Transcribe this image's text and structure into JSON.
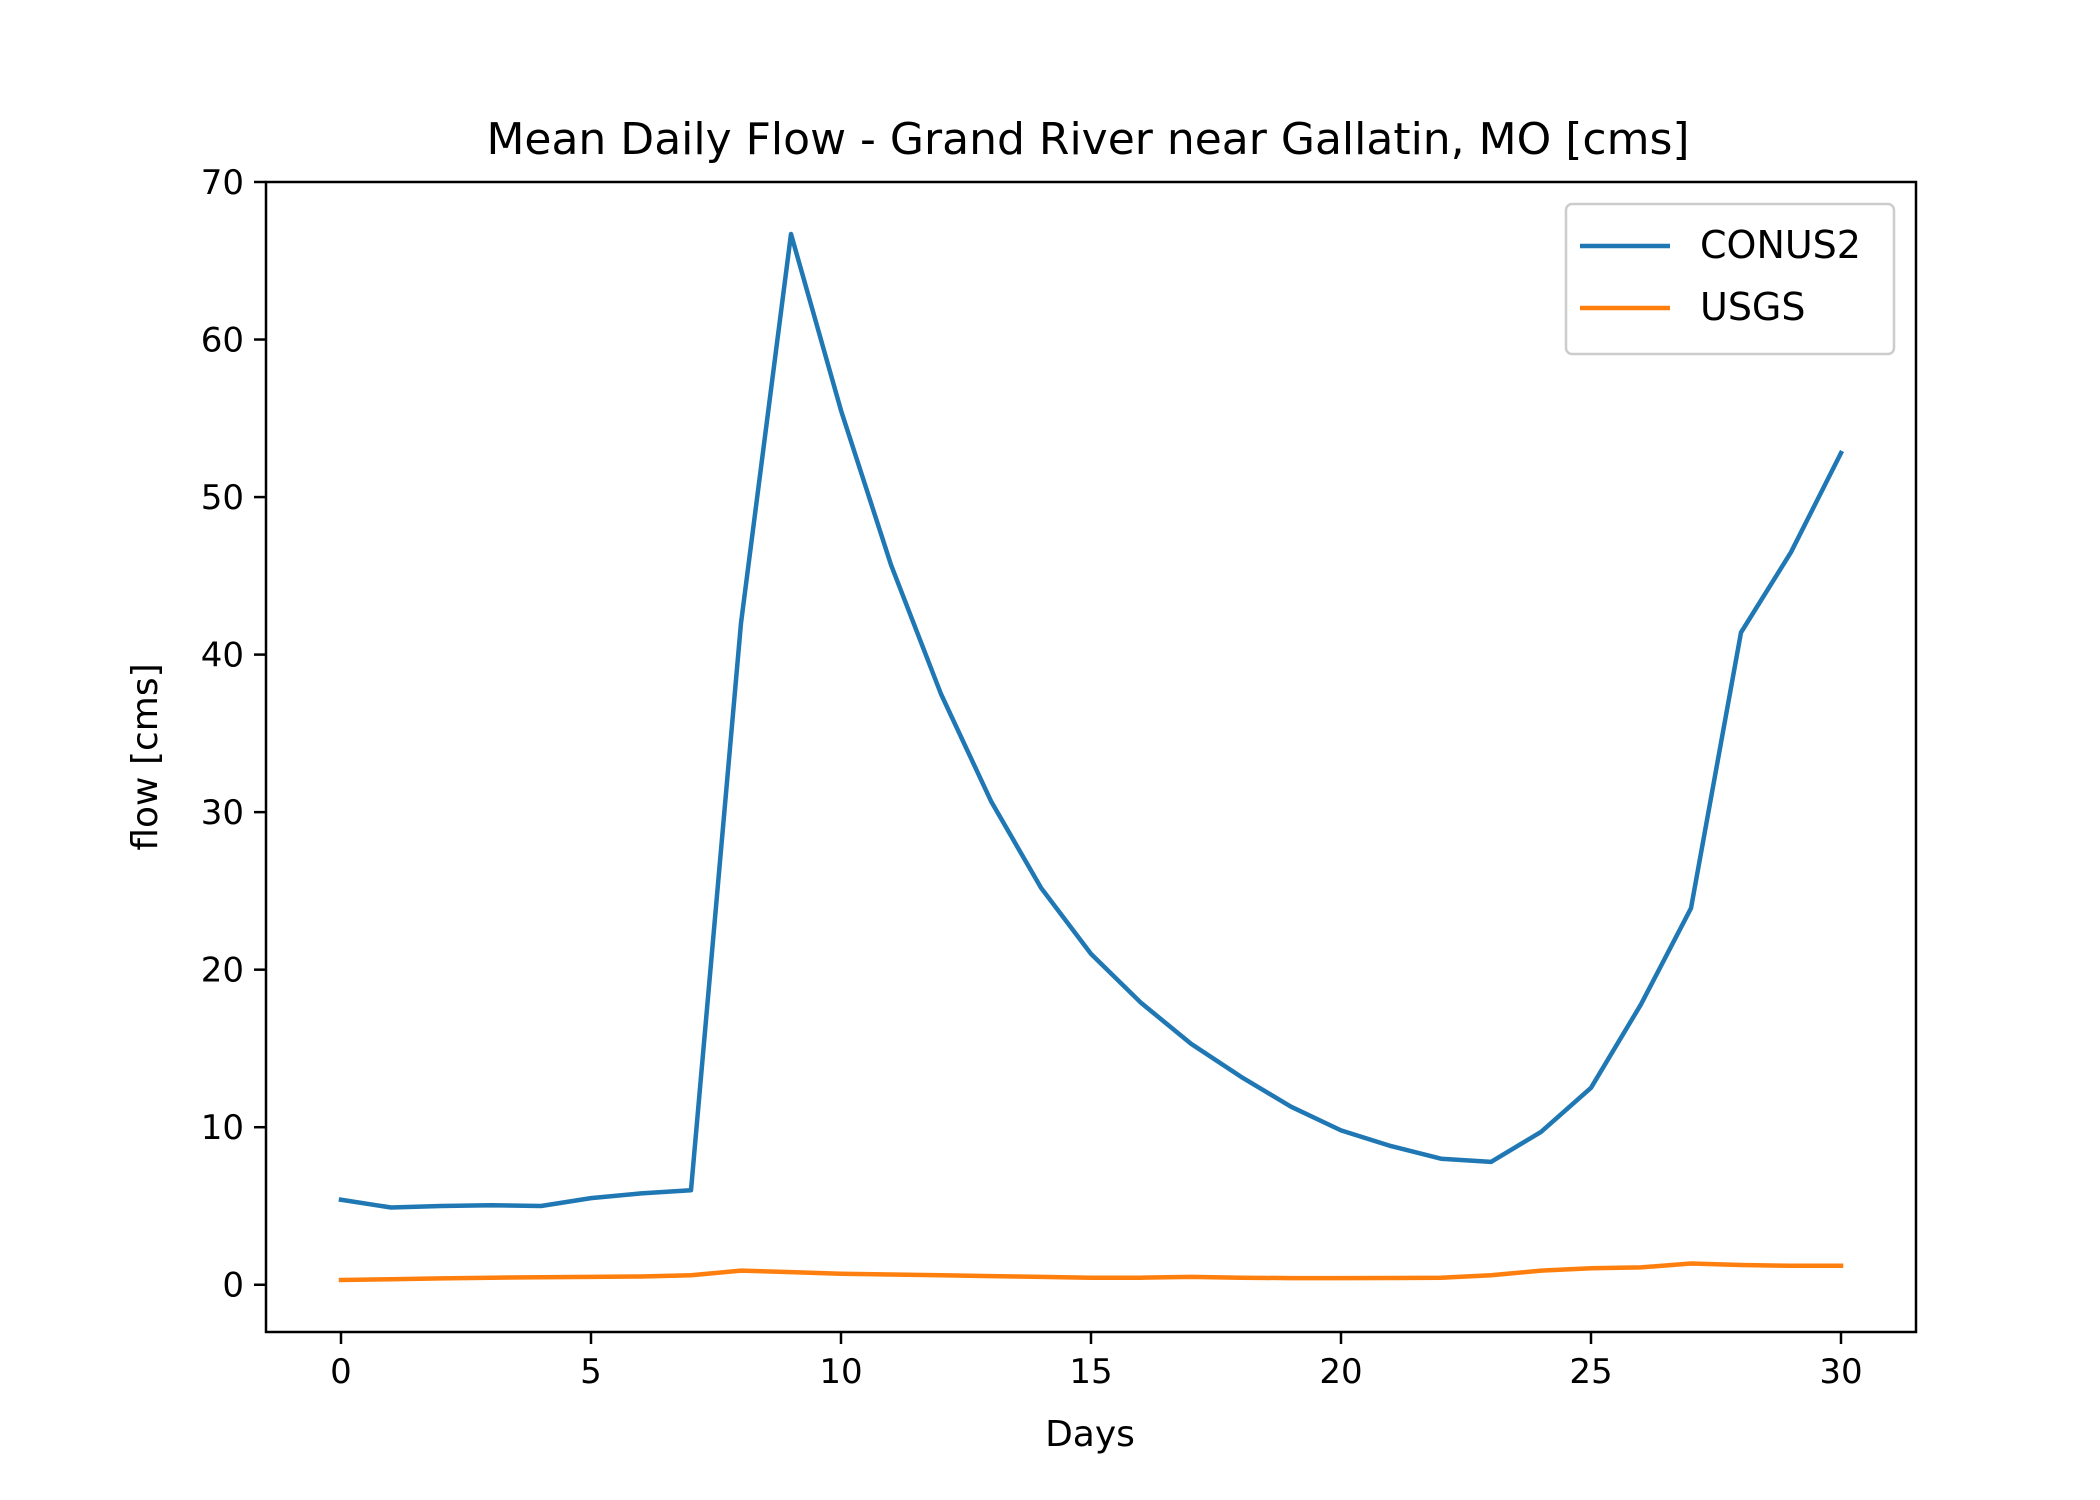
{
  "chart_data": {
    "type": "line",
    "title": "Mean Daily Flow - Grand River near Gallatin, MO [cms]",
    "xlabel": "Days",
    "ylabel": "flow [cms]",
    "xlim": [
      -1.5,
      31.5
    ],
    "ylim": [
      -3,
      70
    ],
    "xticks": [
      0,
      5,
      10,
      15,
      20,
      25,
      30
    ],
    "yticks": [
      0,
      10,
      20,
      30,
      40,
      50,
      60,
      70
    ],
    "grid": false,
    "legend_position": "top-right",
    "x": [
      0,
      1,
      2,
      3,
      4,
      5,
      6,
      7,
      8,
      9,
      10,
      11,
      12,
      13,
      14,
      15,
      16,
      17,
      18,
      19,
      20,
      21,
      22,
      23,
      24,
      25,
      26,
      27,
      28,
      29,
      30
    ],
    "series": [
      {
        "name": "CONUS2",
        "color": "#1f77b4",
        "values": [
          5.4,
          4.9,
          5.0,
          5.05,
          5.0,
          5.5,
          5.8,
          6.0,
          42.0,
          66.7,
          55.5,
          45.7,
          37.5,
          30.7,
          25.2,
          21.0,
          17.9,
          15.3,
          13.2,
          11.3,
          9.8,
          8.8,
          8.0,
          7.8,
          9.7,
          12.5,
          17.8,
          23.9,
          41.4,
          46.5,
          52.8
        ]
      },
      {
        "name": "USGS",
        "color": "#ff7f0e",
        "values": [
          0.3,
          0.35,
          0.4,
          0.45,
          0.48,
          0.5,
          0.52,
          0.6,
          0.9,
          0.8,
          0.7,
          0.65,
          0.6,
          0.55,
          0.5,
          0.45,
          0.45,
          0.5,
          0.45,
          0.42,
          0.42,
          0.43,
          0.45,
          0.6,
          0.9,
          1.05,
          1.1,
          1.35,
          1.25,
          1.2,
          1.2
        ]
      }
    ]
  }
}
